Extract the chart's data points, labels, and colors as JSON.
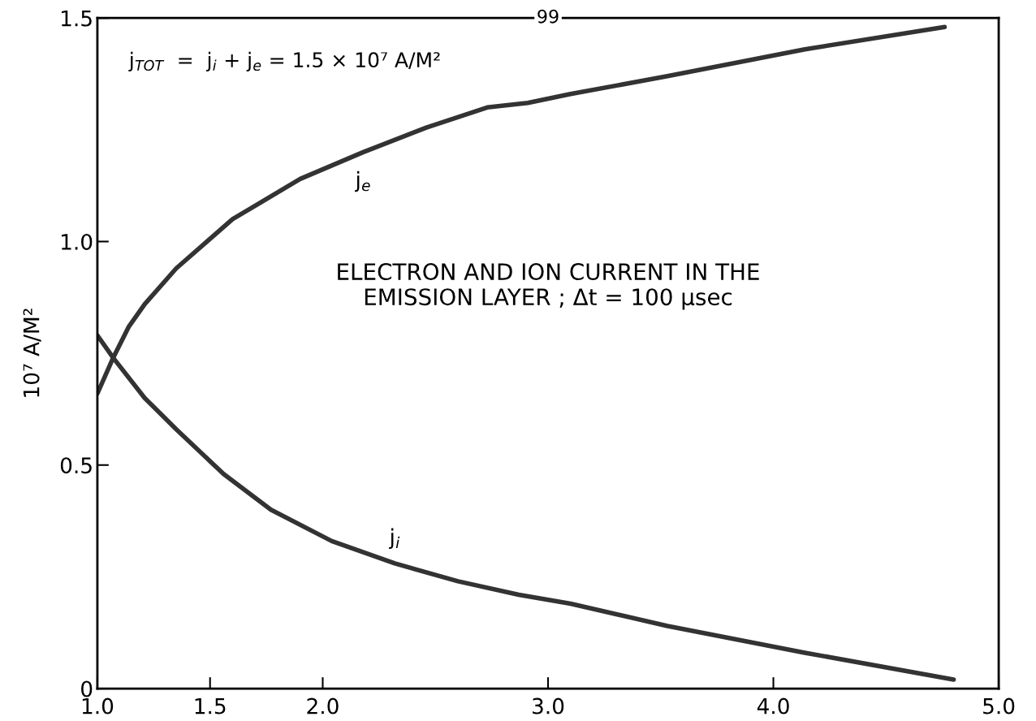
{
  "chart_data": {
    "type": "line",
    "ylabel": "10⁷ A/M²",
    "xlim": [
      1,
      5
    ],
    "ylim": [
      0,
      1.5
    ],
    "xticks": [
      {
        "value": 1,
        "label": "1.0"
      },
      {
        "value": 1.5,
        "label": "1.5"
      },
      {
        "value": 2,
        "label": "2.0"
      },
      {
        "value": 3,
        "label": "3.0"
      },
      {
        "value": 4,
        "label": "4.0"
      },
      {
        "value": 5,
        "label": "5.0"
      }
    ],
    "yticks": [
      0,
      0.5,
      {
        "value": 1,
        "label": "1.0"
      },
      1.5
    ],
    "grid": false,
    "marker": "none",
    "line_style": "solid",
    "series": [
      {
        "name": "j$_{e}$",
        "color": "#333333",
        "x": [
          1.0,
          1.07,
          1.14,
          1.21,
          1.35,
          1.6,
          1.9,
          2.18,
          2.46,
          2.73,
          2.91,
          3.1,
          3.53,
          4.14,
          4.76
        ],
        "values": [
          0.66,
          0.74,
          0.81,
          0.86,
          0.94,
          1.05,
          1.14,
          1.2,
          1.255,
          1.3,
          1.31,
          1.33,
          1.37,
          1.43,
          1.48
        ]
      },
      {
        "name": "j$_{i}$",
        "color": "#333333",
        "x": [
          1.0,
          1.07,
          1.21,
          1.35,
          1.56,
          1.77,
          2.04,
          2.32,
          2.6,
          2.87,
          3.1,
          3.53,
          4.14,
          4.8
        ],
        "values": [
          0.79,
          0.74,
          0.65,
          0.58,
          0.48,
          0.4,
          0.33,
          0.28,
          0.24,
          0.21,
          0.19,
          0.14,
          0.08,
          0.02
        ]
      }
    ],
    "annotations": [
      "j$_{TOT}$  =  j$_{i}$ + j$_{e}$ = 1.5 × 10⁷ A/M²",
      "ELECTRON AND ION CURRENT IN THE\nEMISSION LAYER ; Δt = 100 μsec",
      "99"
    ]
  }
}
